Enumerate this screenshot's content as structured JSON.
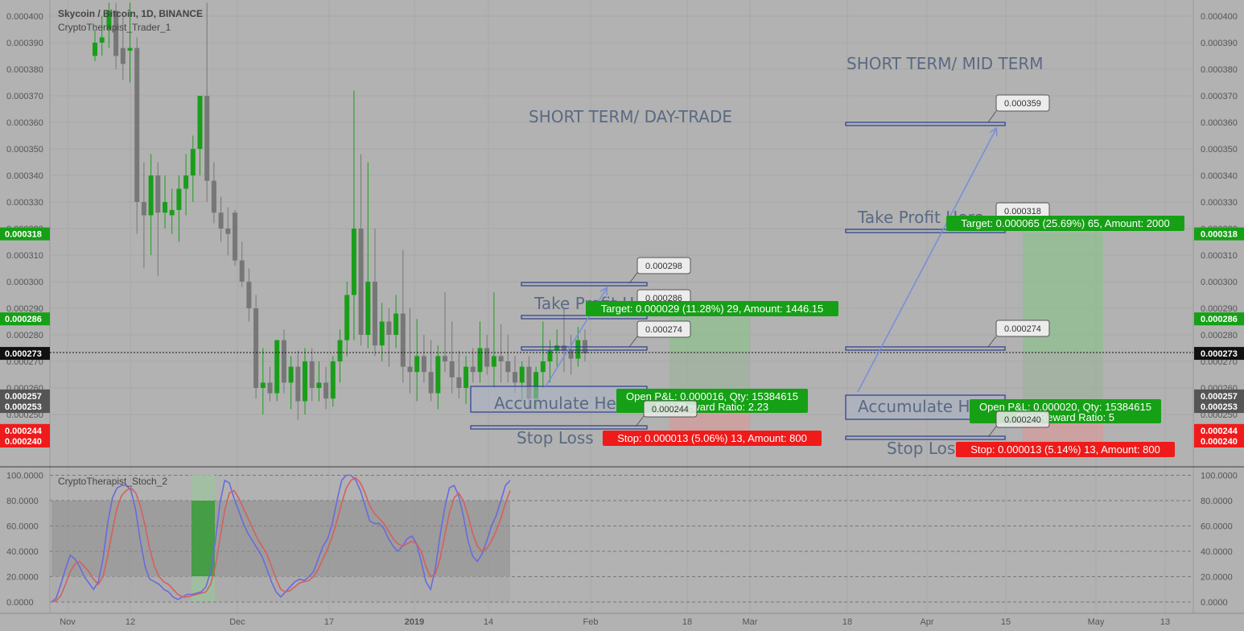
{
  "header": {
    "symbol_title": "Skycoin / Bitcoin, 1D, BINANCE",
    "indicator_name": "CryptoTherapist_Trader_1",
    "stoch_name": "CryptoTherapist_Stoch_2"
  },
  "colors": {
    "background": "#b2b2b2",
    "up_candle": "#1a9e1a",
    "down_candle": "#777777",
    "target_green": "#16a016",
    "stop_red": "#ef1a1a",
    "line_blue": "#2a3d8f",
    "stoch_k": "#6a6adf",
    "stoch_d": "#d46060"
  },
  "chart_data": [
    {
      "type": "candlestick",
      "title": "Skycoin / Bitcoin, 1D, BINANCE",
      "y_axis": {
        "ticks": [
          "0.000400",
          "0.000390",
          "0.000380",
          "0.000370",
          "0.000360",
          "0.000350",
          "0.000340",
          "0.000330",
          "0.000320",
          "0.000310",
          "0.000300",
          "0.000290",
          "0.000280",
          "0.000270",
          "0.000260",
          "0.000250"
        ],
        "ylim": [
          0.000235,
          0.000405
        ]
      },
      "x_axis": {
        "ticks": [
          "Nov",
          "12",
          "Dec",
          "17",
          "2019",
          "14",
          "Feb",
          "18",
          "Mar",
          "18",
          "Apr",
          "15",
          "May",
          "13"
        ]
      },
      "price_labels": {
        "target": "0.000318",
        "mid_target": "0.000286",
        "current": "0.000273",
        "open_a": "0.000257",
        "open_b": "0.000253",
        "stop_a": "0.000244",
        "stop_b": "0.000240"
      },
      "candles_note": "approximate daily OHLC, Nov 2018 - Jan 2019",
      "candles": [
        {
          "o": 0.000385,
          "h": 0.000395,
          "l": 0.000383,
          "c": 0.00039
        },
        {
          "o": 0.00039,
          "h": 0.0004,
          "l": 0.000385,
          "c": 0.000392
        },
        {
          "o": 0.000395,
          "h": 0.000405,
          "l": 0.000388,
          "c": 0.000402
        },
        {
          "o": 0.000402,
          "h": 0.000405,
          "l": 0.00038,
          "c": 0.000385
        },
        {
          "o": 0.000388,
          "h": 0.0004,
          "l": 0.000376,
          "c": 0.000382
        },
        {
          "o": 0.000387,
          "h": 0.000405,
          "l": 0.000375,
          "c": 0.000388
        },
        {
          "o": 0.000388,
          "h": 0.000392,
          "l": 0.000318,
          "c": 0.00033
        },
        {
          "o": 0.00033,
          "h": 0.000345,
          "l": 0.000305,
          "c": 0.000325
        },
        {
          "o": 0.000325,
          "h": 0.000348,
          "l": 0.00031,
          "c": 0.00034
        },
        {
          "o": 0.00034,
          "h": 0.000345,
          "l": 0.000302,
          "c": 0.000326
        },
        {
          "o": 0.000326,
          "h": 0.00034,
          "l": 0.00032,
          "c": 0.00033
        },
        {
          "o": 0.000325,
          "h": 0.000335,
          "l": 0.000318,
          "c": 0.000327
        },
        {
          "o": 0.000327,
          "h": 0.00034,
          "l": 0.000315,
          "c": 0.000335
        },
        {
          "o": 0.000335,
          "h": 0.000348,
          "l": 0.000325,
          "c": 0.00034
        },
        {
          "o": 0.00034,
          "h": 0.000355,
          "l": 0.00033,
          "c": 0.00035
        },
        {
          "o": 0.00035,
          "h": 0.00037,
          "l": 0.00034,
          "c": 0.00037
        },
        {
          "o": 0.00037,
          "h": 0.000405,
          "l": 0.00033,
          "c": 0.000338
        },
        {
          "o": 0.000338,
          "h": 0.000345,
          "l": 0.000322,
          "c": 0.000326
        },
        {
          "o": 0.000326,
          "h": 0.000332,
          "l": 0.000315,
          "c": 0.00032
        },
        {
          "o": 0.00032,
          "h": 0.000328,
          "l": 0.00031,
          "c": 0.000318
        },
        {
          "o": 0.000326,
          "h": 0.000327,
          "l": 0.000306,
          "c": 0.000308
        },
        {
          "o": 0.000308,
          "h": 0.000315,
          "l": 0.000298,
          "c": 0.0003
        },
        {
          "o": 0.0003,
          "h": 0.000305,
          "l": 0.000285,
          "c": 0.00029
        },
        {
          "o": 0.00029,
          "h": 0.000295,
          "l": 0.000256,
          "c": 0.00026
        },
        {
          "o": 0.00026,
          "h": 0.000275,
          "l": 0.00025,
          "c": 0.000262
        },
        {
          "o": 0.000262,
          "h": 0.000268,
          "l": 0.000255,
          "c": 0.000258
        },
        {
          "o": 0.000258,
          "h": 0.000278,
          "l": 0.000255,
          "c": 0.000278
        },
        {
          "o": 0.000278,
          "h": 0.000282,
          "l": 0.000258,
          "c": 0.000262
        },
        {
          "o": 0.000262,
          "h": 0.000272,
          "l": 0.000252,
          "c": 0.000268
        },
        {
          "o": 0.000268,
          "h": 0.000274,
          "l": 0.000248,
          "c": 0.000255
        },
        {
          "o": 0.000255,
          "h": 0.000275,
          "l": 0.00025,
          "c": 0.00027
        },
        {
          "o": 0.00027,
          "h": 0.000275,
          "l": 0.000255,
          "c": 0.00026
        },
        {
          "o": 0.00026,
          "h": 0.00027,
          "l": 0.000255,
          "c": 0.000262
        },
        {
          "o": 0.000262,
          "h": 0.000268,
          "l": 0.000252,
          "c": 0.000256
        },
        {
          "o": 0.000256,
          "h": 0.000272,
          "l": 0.000253,
          "c": 0.00027
        },
        {
          "o": 0.00027,
          "h": 0.000282,
          "l": 0.000262,
          "c": 0.000278
        },
        {
          "o": 0.000278,
          "h": 0.0003,
          "l": 0.000272,
          "c": 0.000295
        },
        {
          "o": 0.000295,
          "h": 0.000372,
          "l": 0.000278,
          "c": 0.00032
        },
        {
          "o": 0.00032,
          "h": 0.000348,
          "l": 0.000276,
          "c": 0.00028
        },
        {
          "o": 0.00028,
          "h": 0.000345,
          "l": 0.000275,
          "c": 0.0003
        },
        {
          "o": 0.0003,
          "h": 0.00032,
          "l": 0.000272,
          "c": 0.000276
        },
        {
          "o": 0.000276,
          "h": 0.000292,
          "l": 0.00027,
          "c": 0.000285
        },
        {
          "o": 0.000285,
          "h": 0.00029,
          "l": 0.000268,
          "c": 0.00028
        },
        {
          "o": 0.00028,
          "h": 0.000295,
          "l": 0.000275,
          "c": 0.000288
        },
        {
          "o": 0.000288,
          "h": 0.000312,
          "l": 0.000262,
          "c": 0.000268
        },
        {
          "o": 0.000268,
          "h": 0.00029,
          "l": 0.000258,
          "c": 0.000266
        },
        {
          "o": 0.000266,
          "h": 0.000286,
          "l": 0.000255,
          "c": 0.000272
        },
        {
          "o": 0.000272,
          "h": 0.00028,
          "l": 0.000262,
          "c": 0.000266
        },
        {
          "o": 0.000266,
          "h": 0.000278,
          "l": 0.000255,
          "c": 0.000258
        },
        {
          "o": 0.000258,
          "h": 0.000276,
          "l": 0.000252,
          "c": 0.000272
        },
        {
          "o": 0.000272,
          "h": 0.000296,
          "l": 0.000266,
          "c": 0.00027
        },
        {
          "o": 0.00027,
          "h": 0.000285,
          "l": 0.000258,
          "c": 0.000264
        },
        {
          "o": 0.000264,
          "h": 0.000274,
          "l": 0.000256,
          "c": 0.00026
        },
        {
          "o": 0.00026,
          "h": 0.000272,
          "l": 0.000254,
          "c": 0.000268
        },
        {
          "o": 0.000268,
          "h": 0.000275,
          "l": 0.000262,
          "c": 0.000266
        },
        {
          "o": 0.000266,
          "h": 0.000285,
          "l": 0.000262,
          "c": 0.000275
        },
        {
          "o": 0.000275,
          "h": 0.00028,
          "l": 0.000265,
          "c": 0.000268
        },
        {
          "o": 0.000268,
          "h": 0.000296,
          "l": 0.00026,
          "c": 0.000272
        },
        {
          "o": 0.000272,
          "h": 0.000284,
          "l": 0.000262,
          "c": 0.00027
        },
        {
          "o": 0.00027,
          "h": 0.00028,
          "l": 0.000262,
          "c": 0.000266
        },
        {
          "o": 0.000266,
          "h": 0.000272,
          "l": 0.000258,
          "c": 0.000262
        },
        {
          "o": 0.000262,
          "h": 0.00027,
          "l": 0.000255,
          "c": 0.000268
        },
        {
          "o": 0.000268,
          "h": 0.000272,
          "l": 0.000252,
          "c": 0.000256
        },
        {
          "o": 0.000256,
          "h": 0.000268,
          "l": 0.000252,
          "c": 0.000266
        },
        {
          "o": 0.000266,
          "h": 0.000285,
          "l": 0.00026,
          "c": 0.00027
        },
        {
          "o": 0.00027,
          "h": 0.000278,
          "l": 0.000262,
          "c": 0.000274
        },
        {
          "o": 0.000274,
          "h": 0.000282,
          "l": 0.000268,
          "c": 0.000276
        },
        {
          "o": 0.000276,
          "h": 0.00029,
          "l": 0.000266,
          "c": 0.000274
        },
        {
          "o": 0.000274,
          "h": 0.00028,
          "l": 0.000265,
          "c": 0.000271
        },
        {
          "o": 0.000271,
          "h": 0.000283,
          "l": 0.000268,
          "c": 0.000278
        },
        {
          "o": 0.000278,
          "h": 0.000282,
          "l": 0.00027,
          "c": 0.000273
        }
      ],
      "annotations": {
        "section_left": "SHORT TERM/ DAY-TRADE",
        "section_right": "SHORT TERM/ MID TERM",
        "left": {
          "accumulate": "Accumulate Here",
          "take_profit": "Take Profit Here",
          "stop_loss": "Stop Loss",
          "callout_1": "0.000298",
          "callout_2": "0.000286",
          "callout_3": "0.000274",
          "callout_4": "0.000244",
          "target_text": "Target: 0.000029 (11.28%) 29, Amount: 1446.15",
          "pl_text": "Open P&L: 0.000016, Qty: 15384615",
          "rr_text": "Risk/Reward Ratio: 2.23",
          "stop_text": "Stop: 0.000013 (5.06%) 13, Amount: 800"
        },
        "right": {
          "accumulate": "Accumulate Here",
          "take_profit": "Take Profit Here",
          "stop_loss": "Stop Loss",
          "callout_1": "0.000359",
          "callout_2": "0.000318",
          "callout_3": "0.000274",
          "callout_4": "0.000240",
          "target_text": "Target: 0.000065 (25.69%) 65, Amount: 2000",
          "pl_text": "Open P&L: 0.000020, Qty: 15384615",
          "rr_text": "Risk/Reward Ratio: 5",
          "stop_text": "Stop: 0.000013 (5.14%) 13, Amount: 800"
        }
      }
    },
    {
      "type": "line",
      "title": "CryptoTherapist_Stoch_2",
      "y_axis": {
        "ticks": [
          "100.0000",
          "80.0000",
          "60.0000",
          "40.0000",
          "20.0000",
          "0.0000"
        ],
        "ylim": [
          0,
          100
        ]
      },
      "series": [
        {
          "values": [
            0,
            3,
            14,
            26,
            37,
            34,
            28,
            20,
            15,
            10,
            16,
            34,
            62,
            82,
            90,
            92,
            92,
            88,
            72,
            48,
            28,
            18,
            16,
            14,
            10,
            8,
            4,
            2,
            4,
            6,
            6,
            7,
            8,
            12,
            24,
            48,
            78,
            96,
            94,
            82,
            72,
            62,
            54,
            48,
            42,
            36,
            26,
            16,
            8,
            4,
            8,
            12,
            16,
            18,
            17,
            20,
            24,
            34,
            44,
            50,
            62,
            80,
            96,
            100,
            100,
            96,
            88,
            76,
            64,
            62,
            62,
            58,
            50,
            44,
            40,
            44,
            50,
            52,
            46,
            32,
            16,
            10,
            26,
            52,
            74,
            90,
            92,
            84,
            68,
            48,
            36,
            32,
            38,
            48,
            60,
            68,
            80,
            92,
            96
          ]
        },
        {
          "values": [
            0,
            1,
            5,
            14,
            24,
            30,
            32,
            28,
            24,
            18,
            14,
            20,
            36,
            56,
            74,
            84,
            88,
            90,
            86,
            76,
            60,
            42,
            28,
            20,
            16,
            14,
            10,
            6,
            4,
            4,
            5,
            6,
            7,
            8,
            14,
            28,
            50,
            72,
            86,
            88,
            82,
            74,
            66,
            58,
            50,
            44,
            38,
            28,
            18,
            10,
            8,
            9,
            12,
            15,
            16,
            17,
            20,
            26,
            34,
            42,
            52,
            64,
            78,
            90,
            96,
            98,
            94,
            86,
            76,
            70,
            66,
            62,
            56,
            50,
            46,
            44,
            46,
            48,
            46,
            40,
            28,
            20,
            22,
            34,
            52,
            70,
            82,
            86,
            80,
            68,
            54,
            44,
            40,
            42,
            48,
            56,
            66,
            78,
            88
          ]
        }
      ]
    }
  ]
}
